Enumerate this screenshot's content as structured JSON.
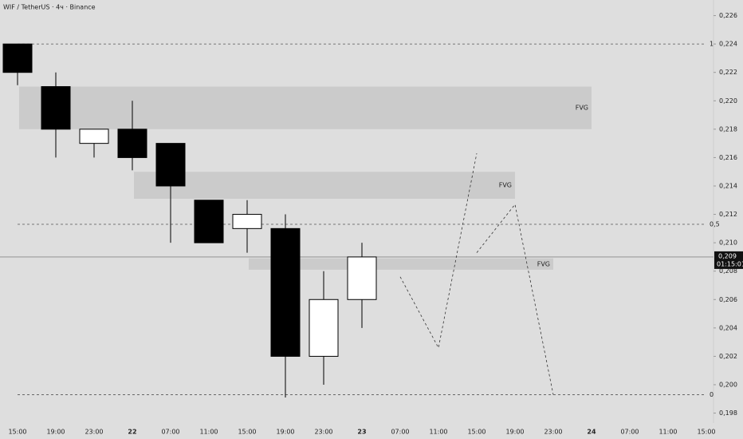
{
  "chart_data": {
    "type": "candlestick",
    "title": "WIF / TetherUS · 4ч · Binance",
    "categories": [
      "15:00",
      "19:00",
      "23:00",
      "22",
      "07:00",
      "11:00",
      "15:00",
      "19:00",
      "23:00",
      "23",
      "07:00",
      "11:00",
      "15:00",
      "19:00",
      "23:00",
      "24",
      "07:00",
      "11:00",
      "15:00"
    ],
    "bold_categories": [
      3,
      9,
      15
    ],
    "open": [
      0.224,
      0.221,
      0.217,
      0.218,
      0.217,
      0.213,
      0.211,
      0.211,
      0.202,
      0.206,
      null,
      null,
      null,
      null,
      null,
      null,
      null,
      null,
      null
    ],
    "high": [
      0.224,
      0.222,
      0.218,
      0.22,
      0.217,
      0.213,
      0.213,
      0.212,
      0.208,
      0.21,
      null,
      null,
      null,
      null,
      null,
      null,
      null,
      null,
      null
    ],
    "low": [
      0.2211,
      0.216,
      0.216,
      0.2151,
      0.21,
      0.21,
      0.2093,
      0.1991,
      0.2,
      0.204,
      null,
      null,
      null,
      null,
      null,
      null,
      null,
      null,
      null
    ],
    "close": [
      0.222,
      0.218,
      0.218,
      0.216,
      0.214,
      0.21,
      0.212,
      0.202,
      0.206,
      0.209,
      null,
      null,
      null,
      null,
      null,
      null,
      null,
      null,
      null
    ],
    "up_color": "#ffffff",
    "down_color": "#000000",
    "ylim": [
      0.1973,
      0.2271
    ],
    "yticks": [
      {
        "value": 0.226,
        "label": "0,226"
      },
      {
        "value": 0.224,
        "label": "0,224"
      },
      {
        "value": 0.222,
        "label": "0,222"
      },
      {
        "value": 0.22,
        "label": "0,220"
      },
      {
        "value": 0.218,
        "label": "0,218"
      },
      {
        "value": 0.216,
        "label": "0,216"
      },
      {
        "value": 0.214,
        "label": "0,214"
      },
      {
        "value": 0.212,
        "label": "0,212"
      },
      {
        "value": 0.21,
        "label": "0,210"
      },
      {
        "value": 0.208,
        "label": "0,208"
      },
      {
        "value": 0.206,
        "label": "0,206"
      },
      {
        "value": 0.204,
        "label": "0,204"
      },
      {
        "value": 0.202,
        "label": "0,202"
      },
      {
        "value": 0.2,
        "label": "0,200"
      },
      {
        "value": 0.198,
        "label": "0,198"
      }
    ],
    "zones": [
      {
        "label": "FVG",
        "top": 0.221,
        "bottom": 0.218,
        "x_start": 0,
        "x_end": 15
      },
      {
        "label": "FVG",
        "top": 0.215,
        "bottom": 0.2131,
        "x_start": 3,
        "x_end": 13
      },
      {
        "label": "FVG",
        "top": 0.2089,
        "bottom": 0.2081,
        "x_start": 6,
        "x_end": 14
      }
    ],
    "levels": [
      {
        "label": "1",
        "value": 0.224
      },
      {
        "label": "0,5",
        "value": 0.2113
      },
      {
        "label": "0",
        "value": 0.1993
      }
    ],
    "projections": [
      {
        "values": [
          null,
          null,
          null,
          null,
          null,
          null,
          null,
          null,
          null,
          null,
          0.2076,
          0.2026,
          0.2163,
          null,
          null,
          null,
          null,
          null,
          null
        ]
      },
      {
        "values": [
          null,
          null,
          null,
          null,
          null,
          null,
          null,
          null,
          null,
          null,
          null,
          null,
          0.2093,
          0.2127,
          0.1993,
          null,
          null,
          null,
          null
        ]
      }
    ],
    "current_price": {
      "value": 0.209,
      "label": "0,209",
      "countdown": "01:15:01"
    }
  }
}
